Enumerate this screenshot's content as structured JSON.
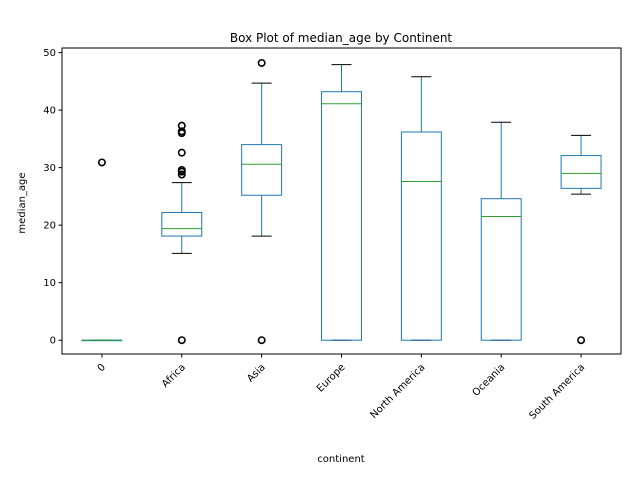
{
  "chart_data": {
    "type": "box",
    "title": "Box Plot of median_age by Continent",
    "xlabel": "continent",
    "ylabel": "median_age",
    "ylim": [
      -2.4,
      50.8
    ],
    "yticks": [
      0,
      10,
      20,
      30,
      40,
      50
    ],
    "grid": false,
    "legend": "none",
    "categories": [
      "0",
      "Africa",
      "Asia",
      "Europe",
      "North America",
      "Oceania",
      "South America"
    ],
    "boxes": [
      {
        "category": "0",
        "whisker_low": 0,
        "q1": 0,
        "median": 0,
        "q3": 0,
        "whisker_high": 0,
        "outliers": [
          30.9
        ]
      },
      {
        "category": "Africa",
        "whisker_low": 15.1,
        "q1": 18.1,
        "median": 19.4,
        "q3": 22.2,
        "whisker_high": 27.4,
        "outliers": [
          0,
          28.8,
          29.3,
          29.6,
          32.6,
          36.0,
          36.3,
          37.3
        ]
      },
      {
        "category": "Asia",
        "whisker_low": 18.1,
        "q1": 25.2,
        "median": 30.6,
        "q3": 34.0,
        "whisker_high": 44.7,
        "outliers": [
          0,
          48.2
        ]
      },
      {
        "category": "Europe",
        "whisker_low": 0,
        "q1": 0,
        "median": 41.1,
        "q3": 43.2,
        "whisker_high": 47.9,
        "outliers": []
      },
      {
        "category": "North America",
        "whisker_low": 0,
        "q1": 0,
        "median": 27.6,
        "q3": 36.2,
        "whisker_high": 45.8,
        "outliers": []
      },
      {
        "category": "Oceania",
        "whisker_low": 0,
        "q1": 0,
        "median": 21.5,
        "q3": 24.6,
        "whisker_high": 37.9,
        "outliers": []
      },
      {
        "category": "South America",
        "whisker_low": 25.4,
        "q1": 26.4,
        "median": 29.0,
        "q3": 32.1,
        "whisker_high": 35.6,
        "outliers": [
          0
        ]
      }
    ],
    "colors": {
      "box": "#1f77b4",
      "median": "#2ca02c",
      "whisker": "#000000",
      "outlier": "#000000"
    }
  }
}
